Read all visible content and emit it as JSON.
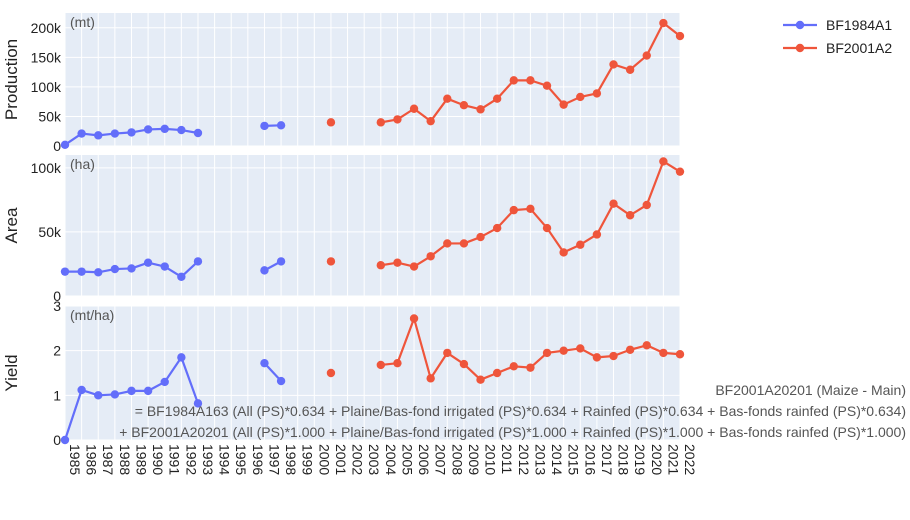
{
  "chart_data": {
    "type": "line",
    "years": [
      "1985",
      "1986",
      "1987",
      "1988",
      "1989",
      "1990",
      "1991",
      "1992",
      "1993",
      "1994",
      "1995",
      "1996",
      "1997",
      "1998",
      "1999",
      "2000",
      "2001",
      "2002",
      "2003",
      "2004",
      "2005",
      "2006",
      "2007",
      "2008",
      "2009",
      "2010",
      "2011",
      "2012",
      "2013",
      "2014",
      "2015",
      "2016",
      "2017",
      "2018",
      "2019",
      "2020",
      "2021",
      "2022"
    ],
    "xtick_labels": [
      "1985",
      "1986",
      "1987",
      "1988",
      "1989",
      "1990",
      "1991",
      "1992",
      "1993",
      "1994",
      "1995",
      "1996",
      "1997",
      "1998",
      "1999",
      "2000",
      "2001",
      "2002",
      "2003",
      "2004",
      "2005",
      "2006",
      "2007",
      "2008",
      "2009",
      "2010",
      "2011",
      "2012",
      "2013",
      "2014",
      "2015",
      "2016",
      "2017",
      "2018",
      "2019",
      "2020",
      "2021",
      "2022"
    ],
    "legend": {
      "position": "top-right",
      "series": [
        {
          "name": "BF1984A1",
          "color": "#636efa"
        },
        {
          "name": "BF2001A2",
          "color": "#ef553b"
        }
      ]
    },
    "panels": [
      {
        "ylabel": "Production",
        "unit": "(mt)",
        "ylim": [
          0,
          225000
        ],
        "ticks": [
          0,
          50000,
          100000,
          150000,
          200000
        ],
        "tick_labels": [
          "0",
          "50k",
          "100k",
          "150k",
          "200k"
        ],
        "series": [
          {
            "name": "BF1984A1",
            "color": "#636efa",
            "points": [
              [
                "1985",
                2000
              ],
              [
                "1986",
                21000
              ],
              [
                "1987",
                18000
              ],
              [
                "1988",
                21000
              ],
              [
                "1989",
                23000
              ],
              [
                "1990",
                28000
              ],
              [
                "1991",
                29000
              ],
              [
                "1992",
                27000
              ],
              [
                "1993",
                22000
              ],
              [
                "1994",
                null
              ],
              [
                "1995",
                null
              ],
              [
                "1996",
                null
              ],
              [
                "1997",
                34000
              ],
              [
                "1998",
                35000
              ]
            ]
          },
          {
            "name": "BF2001A2",
            "color": "#ef553b",
            "points": [
              [
                "2001",
                40000
              ],
              [
                "2002",
                null
              ],
              [
                "2003",
                null
              ],
              [
                "2004",
                40000
              ],
              [
                "2005",
                45000
              ],
              [
                "2006",
                63000
              ],
              [
                "2007",
                42000
              ],
              [
                "2008",
                80000
              ],
              [
                "2009",
                69000
              ],
              [
                "2010",
                62000
              ],
              [
                "2011",
                80000
              ],
              [
                "2012",
                111000
              ],
              [
                "2013",
                111000
              ],
              [
                "2014",
                102000
              ],
              [
                "2015",
                70000
              ],
              [
                "2016",
                83000
              ],
              [
                "2017",
                89000
              ],
              [
                "2018",
                138000
              ],
              [
                "2019",
                129000
              ],
              [
                "2020",
                153000
              ],
              [
                "2021",
                208000
              ],
              [
                "2022",
                186000
              ]
            ]
          }
        ]
      },
      {
        "ylabel": "Area",
        "unit": "(ha)",
        "ylim": [
          0,
          110000
        ],
        "ticks": [
          0,
          50000,
          100000
        ],
        "tick_labels": [
          "0",
          "50k",
          "100k"
        ],
        "series": [
          {
            "name": "BF1984A1",
            "color": "#636efa",
            "points": [
              [
                "1985",
                19000
              ],
              [
                "1986",
                19000
              ],
              [
                "1987",
                18500
              ],
              [
                "1988",
                21000
              ],
              [
                "1989",
                21500
              ],
              [
                "1990",
                26000
              ],
              [
                "1991",
                23000
              ],
              [
                "1992",
                15000
              ],
              [
                "1993",
                27000
              ],
              [
                "1994",
                null
              ],
              [
                "1995",
                null
              ],
              [
                "1996",
                null
              ],
              [
                "1997",
                20000
              ],
              [
                "1998",
                27000
              ]
            ]
          },
          {
            "name": "BF2001A2",
            "color": "#ef553b",
            "points": [
              [
                "2001",
                27000
              ],
              [
                "2002",
                null
              ],
              [
                "2003",
                null
              ],
              [
                "2004",
                24000
              ],
              [
                "2005",
                26000
              ],
              [
                "2006",
                23000
              ],
              [
                "2007",
                31000
              ],
              [
                "2008",
                41000
              ],
              [
                "2009",
                41000
              ],
              [
                "2010",
                46000
              ],
              [
                "2011",
                53000
              ],
              [
                "2012",
                67000
              ],
              [
                "2013",
                68000
              ],
              [
                "2014",
                53000
              ],
              [
                "2015",
                34000
              ],
              [
                "2016",
                40000
              ],
              [
                "2017",
                48000
              ],
              [
                "2018",
                72000
              ],
              [
                "2019",
                63000
              ],
              [
                "2020",
                71000
              ],
              [
                "2021",
                105000
              ],
              [
                "2022",
                97000
              ]
            ]
          }
        ]
      },
      {
        "ylabel": "Yield",
        "unit": "(mt/ha)",
        "ylim": [
          0,
          3
        ],
        "ticks": [
          0,
          1,
          2,
          3
        ],
        "tick_labels": [
          "0",
          "1",
          "2",
          "3"
        ],
        "series": [
          {
            "name": "BF1984A1",
            "color": "#636efa",
            "points": [
              [
                "1985",
                0
              ],
              [
                "1986",
                1.12
              ],
              [
                "1987",
                1.0
              ],
              [
                "1988",
                1.02
              ],
              [
                "1989",
                1.1
              ],
              [
                "1990",
                1.1
              ],
              [
                "1991",
                1.3
              ],
              [
                "1992",
                1.85
              ],
              [
                "1993",
                0.82
              ],
              [
                "1994",
                null
              ],
              [
                "1995",
                null
              ],
              [
                "1996",
                null
              ],
              [
                "1997",
                1.72
              ],
              [
                "1998",
                1.32
              ]
            ]
          },
          {
            "name": "BF2001A2",
            "color": "#ef553b",
            "points": [
              [
                "2001",
                1.5
              ],
              [
                "2002",
                null
              ],
              [
                "2003",
                null
              ],
              [
                "2004",
                1.68
              ],
              [
                "2005",
                1.72
              ],
              [
                "2006",
                2.72
              ],
              [
                "2007",
                1.38
              ],
              [
                "2008",
                1.95
              ],
              [
                "2009",
                1.7
              ],
              [
                "2010",
                1.35
              ],
              [
                "2011",
                1.5
              ],
              [
                "2012",
                1.65
              ],
              [
                "2013",
                1.62
              ],
              [
                "2014",
                1.95
              ],
              [
                "2015",
                2.0
              ],
              [
                "2016",
                2.05
              ],
              [
                "2017",
                1.85
              ],
              [
                "2018",
                1.88
              ],
              [
                "2019",
                2.02
              ],
              [
                "2020",
                2.12
              ],
              [
                "2021",
                1.95
              ],
              [
                "2022",
                1.92
              ]
            ]
          }
        ]
      }
    ],
    "annotations": [
      "BF2001A20201 (Maize - Main)",
      "= BF1984A163 (All (PS)*0.634 + Plaine/Bas-fond irrigated (PS)*0.634 + Rainfed (PS)*0.634 + Bas-fonds rainfed (PS)*0.634)",
      "+ BF2001A20201 (All (PS)*1.000 + Plaine/Bas-fond irrigated (PS)*1.000 + Rainfed (PS)*1.000 + Bas-fonds rainfed (PS)*1.000)"
    ]
  }
}
